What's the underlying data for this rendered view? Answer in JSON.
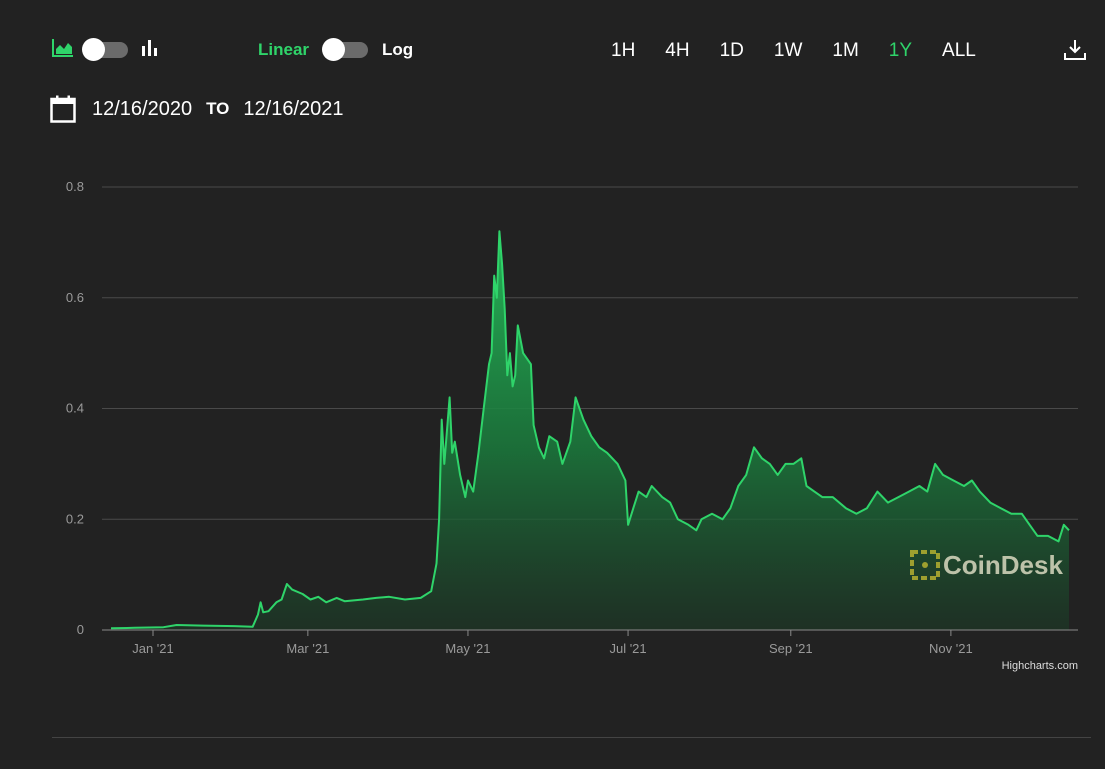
{
  "toolbar": {
    "chart_type_icons": [
      "area-chart-icon",
      "bar-chart-icon"
    ],
    "scale_linear": "Linear",
    "scale_log": "Log",
    "active_scale": "Linear",
    "ranges": [
      "1H",
      "4H",
      "1D",
      "1W",
      "1M",
      "1Y",
      "ALL"
    ],
    "active_range": "1Y",
    "download_icon": "download-icon"
  },
  "datebar": {
    "calendar_icon": "calendar-icon",
    "from": "12/16/2020",
    "to_label": "TO",
    "to": "12/16/2021"
  },
  "colors": {
    "background": "#222222",
    "accent": "#2fd46a",
    "line": "#2fd46a",
    "grid": "#4a4a4a",
    "axis_text": "#9a9a9a"
  },
  "watermark": "CoinDesk",
  "credits": "Highcharts.com",
  "chart_data": {
    "type": "area",
    "xlabel": "",
    "ylabel": "",
    "x_tick_labels": [
      "Jan '21",
      "Mar '21",
      "May '21",
      "Jul '21",
      "Sep '21",
      "Nov '21"
    ],
    "y_ticks": [
      0,
      0.2,
      0.4,
      0.6,
      0.8
    ],
    "ylim": [
      0,
      0.8
    ],
    "xlim": [
      "2020-12-16",
      "2021-12-16"
    ],
    "grid": true,
    "legend": "none",
    "series": [
      {
        "points": [
          [
            "2020-12-16",
            0.003
          ],
          [
            "2020-12-25",
            0.004
          ],
          [
            "2021-01-05",
            0.005
          ],
          [
            "2021-01-10",
            0.009
          ],
          [
            "2021-01-20",
            0.008
          ],
          [
            "2021-02-01",
            0.007
          ],
          [
            "2021-02-08",
            0.006
          ],
          [
            "2021-02-10",
            0.028
          ],
          [
            "2021-02-11",
            0.05
          ],
          [
            "2021-02-12",
            0.032
          ],
          [
            "2021-02-14",
            0.034
          ],
          [
            "2021-02-17",
            0.05
          ],
          [
            "2021-02-19",
            0.055
          ],
          [
            "2021-02-21",
            0.083
          ],
          [
            "2021-02-23",
            0.073
          ],
          [
            "2021-02-27",
            0.065
          ],
          [
            "2021-03-02",
            0.055
          ],
          [
            "2021-03-05",
            0.06
          ],
          [
            "2021-03-08",
            0.05
          ],
          [
            "2021-03-12",
            0.058
          ],
          [
            "2021-03-15",
            0.052
          ],
          [
            "2021-03-22",
            0.055
          ],
          [
            "2021-03-27",
            0.058
          ],
          [
            "2021-04-01",
            0.06
          ],
          [
            "2021-04-07",
            0.055
          ],
          [
            "2021-04-13",
            0.058
          ],
          [
            "2021-04-17",
            0.07
          ],
          [
            "2021-04-19",
            0.12
          ],
          [
            "2021-04-20",
            0.2
          ],
          [
            "2021-04-21",
            0.38
          ],
          [
            "2021-04-22",
            0.3
          ],
          [
            "2021-04-24",
            0.42
          ],
          [
            "2021-04-25",
            0.32
          ],
          [
            "2021-04-26",
            0.34
          ],
          [
            "2021-04-28",
            0.28
          ],
          [
            "2021-04-30",
            0.24
          ],
          [
            "2021-05-01",
            0.27
          ],
          [
            "2021-05-03",
            0.25
          ],
          [
            "2021-05-05",
            0.32
          ],
          [
            "2021-05-07",
            0.4
          ],
          [
            "2021-05-09",
            0.48
          ],
          [
            "2021-05-10",
            0.5
          ],
          [
            "2021-05-11",
            0.64
          ],
          [
            "2021-05-12",
            0.6
          ],
          [
            "2021-05-13",
            0.72
          ],
          [
            "2021-05-14",
            0.66
          ],
          [
            "2021-05-15",
            0.58
          ],
          [
            "2021-05-16",
            0.46
          ],
          [
            "2021-05-17",
            0.5
          ],
          [
            "2021-05-18",
            0.44
          ],
          [
            "2021-05-19",
            0.46
          ],
          [
            "2021-05-20",
            0.55
          ],
          [
            "2021-05-22",
            0.5
          ],
          [
            "2021-05-25",
            0.48
          ],
          [
            "2021-05-26",
            0.37
          ],
          [
            "2021-05-28",
            0.33
          ],
          [
            "2021-05-30",
            0.31
          ],
          [
            "2021-06-01",
            0.35
          ],
          [
            "2021-06-04",
            0.34
          ],
          [
            "2021-06-06",
            0.3
          ],
          [
            "2021-06-09",
            0.34
          ],
          [
            "2021-06-11",
            0.42
          ],
          [
            "2021-06-14",
            0.38
          ],
          [
            "2021-06-17",
            0.35
          ],
          [
            "2021-06-20",
            0.33
          ],
          [
            "2021-06-23",
            0.32
          ],
          [
            "2021-06-27",
            0.3
          ],
          [
            "2021-06-30",
            0.27
          ],
          [
            "2021-07-01",
            0.19
          ],
          [
            "2021-07-03",
            0.22
          ],
          [
            "2021-07-05",
            0.25
          ],
          [
            "2021-07-08",
            0.24
          ],
          [
            "2021-07-10",
            0.26
          ],
          [
            "2021-07-14",
            0.24
          ],
          [
            "2021-07-17",
            0.23
          ],
          [
            "2021-07-20",
            0.2
          ],
          [
            "2021-07-24",
            0.19
          ],
          [
            "2021-07-27",
            0.18
          ],
          [
            "2021-07-29",
            0.2
          ],
          [
            "2021-08-02",
            0.21
          ],
          [
            "2021-08-06",
            0.2
          ],
          [
            "2021-08-09",
            0.22
          ],
          [
            "2021-08-12",
            0.26
          ],
          [
            "2021-08-15",
            0.28
          ],
          [
            "2021-08-18",
            0.33
          ],
          [
            "2021-08-21",
            0.31
          ],
          [
            "2021-08-24",
            0.3
          ],
          [
            "2021-08-27",
            0.28
          ],
          [
            "2021-08-30",
            0.3
          ],
          [
            "2021-09-02",
            0.3
          ],
          [
            "2021-09-05",
            0.31
          ],
          [
            "2021-09-07",
            0.26
          ],
          [
            "2021-09-10",
            0.25
          ],
          [
            "2021-09-13",
            0.24
          ],
          [
            "2021-09-17",
            0.24
          ],
          [
            "2021-09-22",
            0.22
          ],
          [
            "2021-09-26",
            0.21
          ],
          [
            "2021-09-30",
            0.22
          ],
          [
            "2021-10-04",
            0.25
          ],
          [
            "2021-10-08",
            0.23
          ],
          [
            "2021-10-12",
            0.24
          ],
          [
            "2021-10-16",
            0.25
          ],
          [
            "2021-10-20",
            0.26
          ],
          [
            "2021-10-23",
            0.25
          ],
          [
            "2021-10-26",
            0.3
          ],
          [
            "2021-10-29",
            0.28
          ],
          [
            "2021-11-02",
            0.27
          ],
          [
            "2021-11-06",
            0.26
          ],
          [
            "2021-11-09",
            0.27
          ],
          [
            "2021-11-12",
            0.25
          ],
          [
            "2021-11-16",
            0.23
          ],
          [
            "2021-11-20",
            0.22
          ],
          [
            "2021-11-24",
            0.21
          ],
          [
            "2021-11-28",
            0.21
          ],
          [
            "2021-12-01",
            0.19
          ],
          [
            "2021-12-04",
            0.17
          ],
          [
            "2021-12-08",
            0.17
          ],
          [
            "2021-12-12",
            0.16
          ],
          [
            "2021-12-14",
            0.19
          ],
          [
            "2021-12-16",
            0.18
          ]
        ]
      }
    ]
  }
}
